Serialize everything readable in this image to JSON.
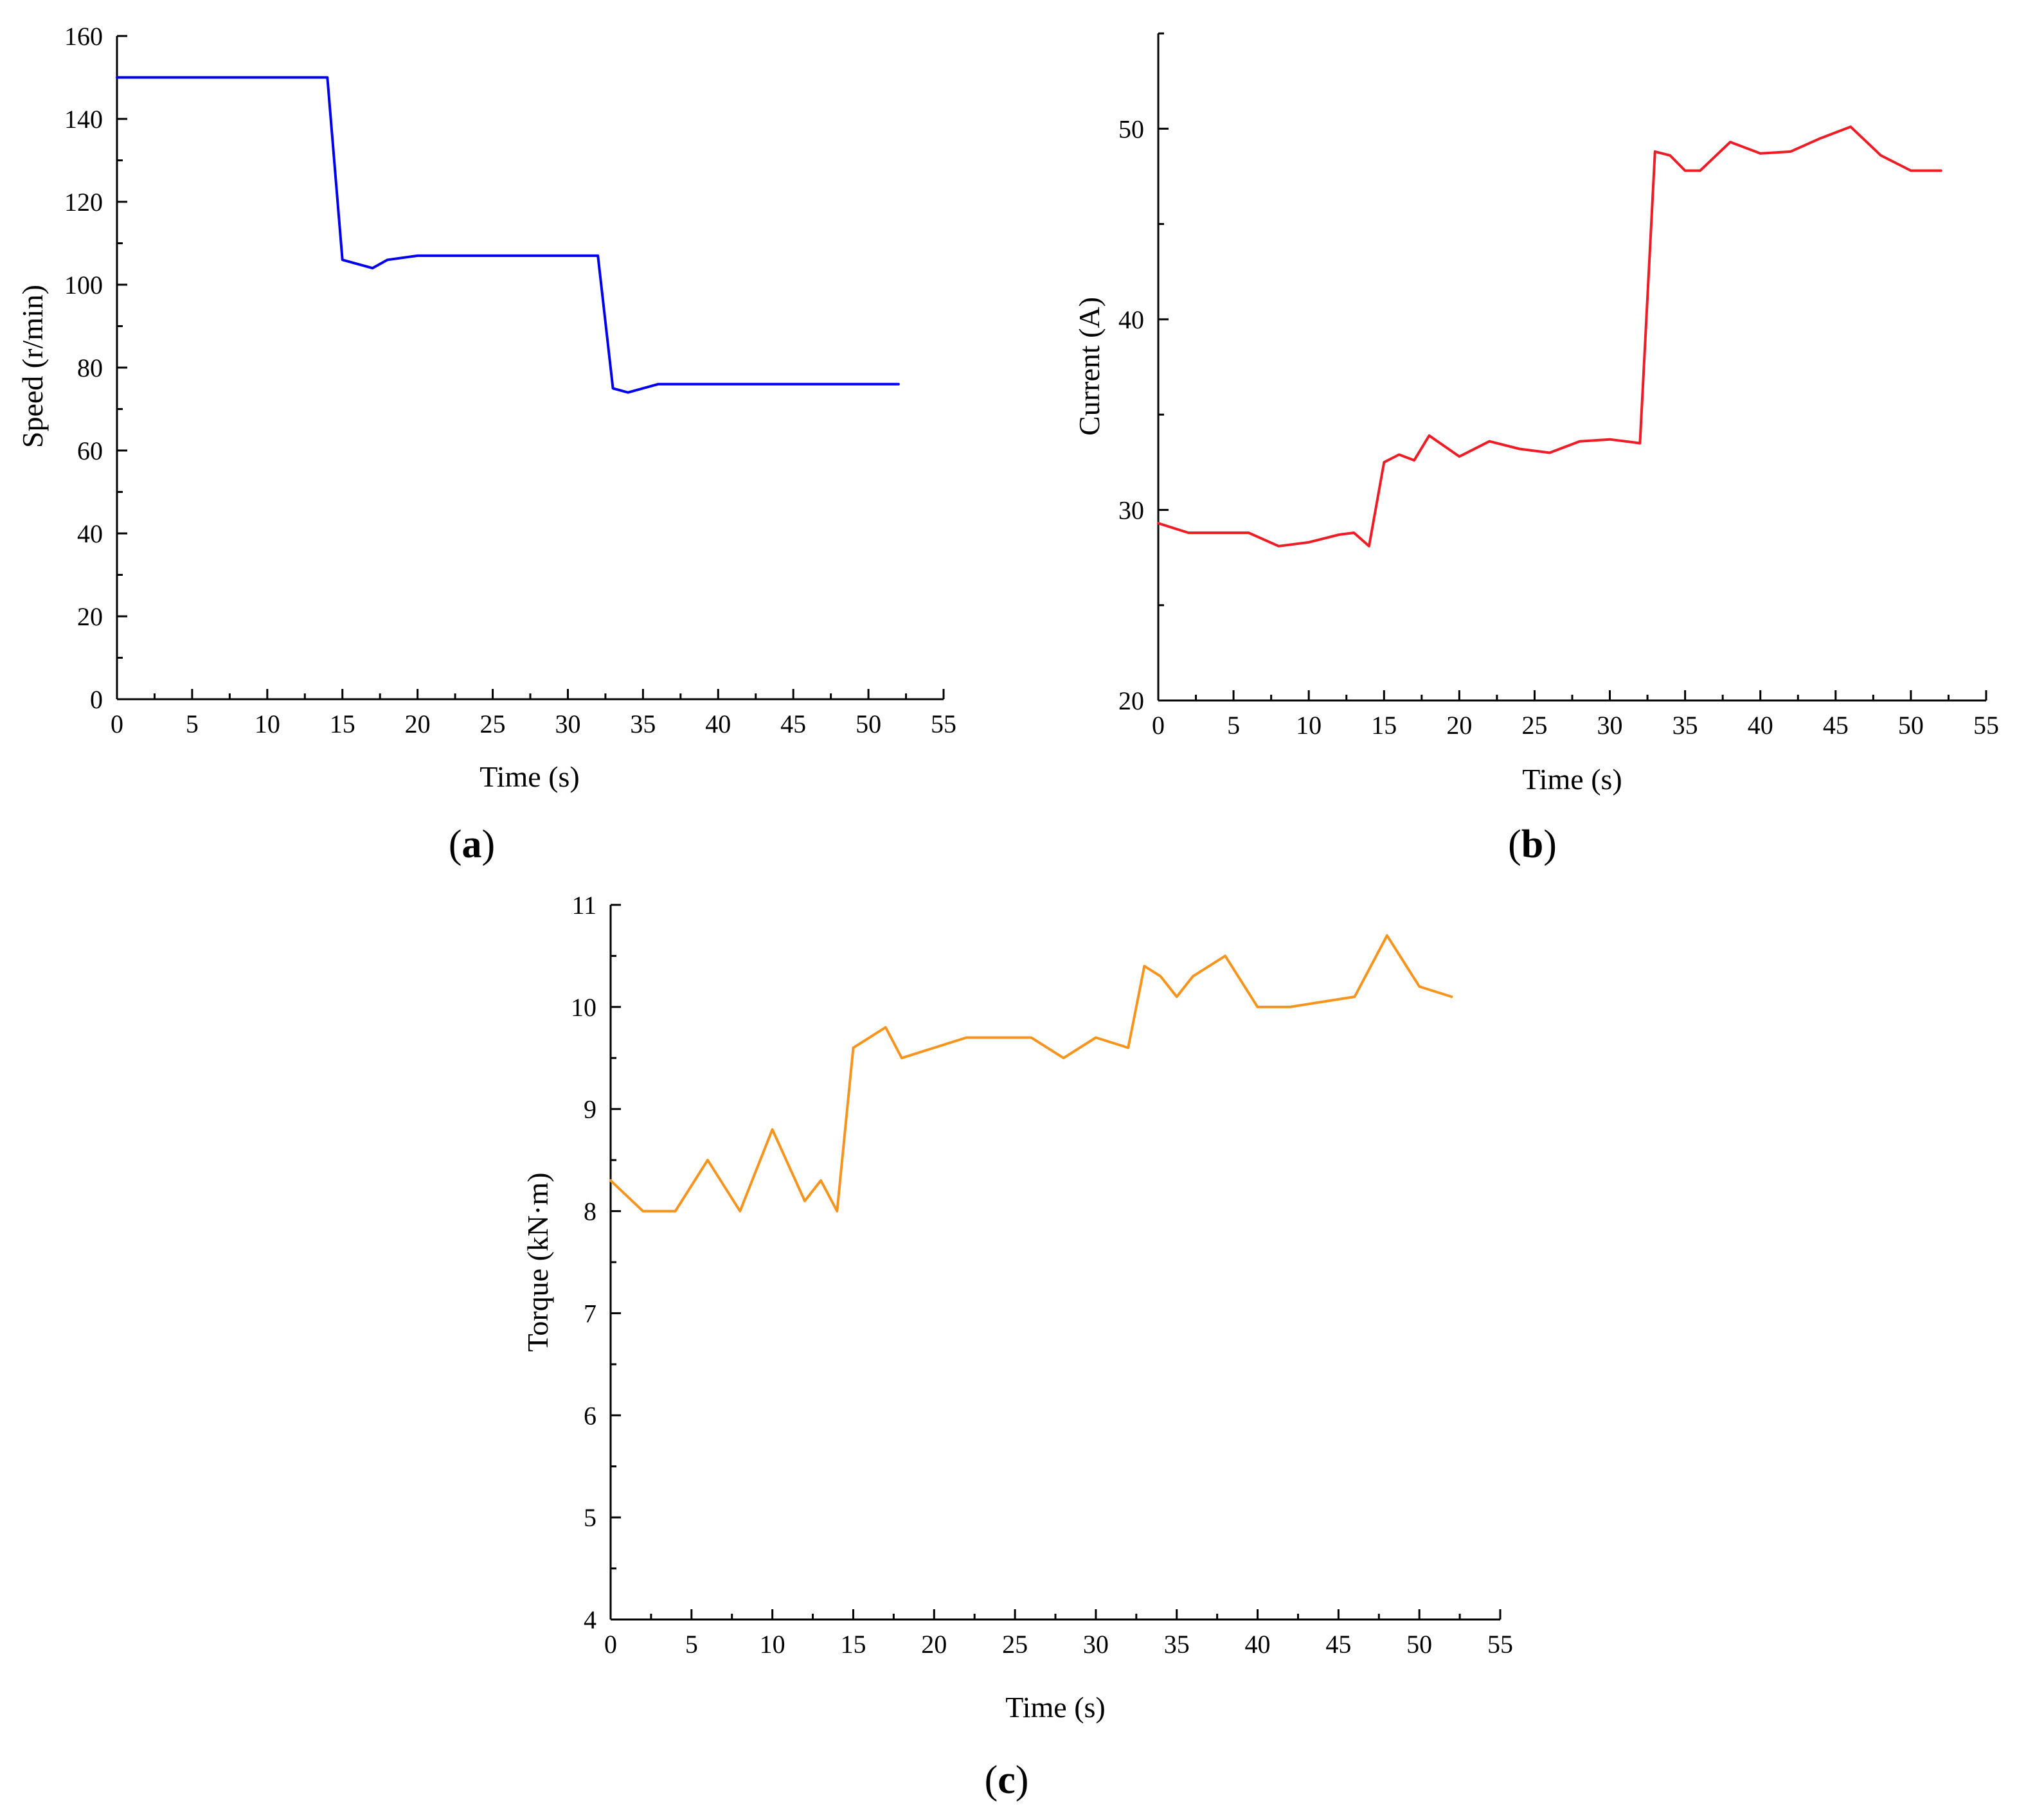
{
  "chart_data": [
    {
      "type": "line",
      "panel_label": "a",
      "xlabel": "Time (s)",
      "ylabel": "Speed (r/min)",
      "xlim": [
        0,
        55
      ],
      "ylim": [
        0,
        160
      ],
      "xticks": [
        0,
        5,
        10,
        15,
        20,
        25,
        30,
        35,
        40,
        45,
        50,
        55
      ],
      "yticks": [
        0,
        20,
        40,
        60,
        80,
        100,
        120,
        140,
        160
      ],
      "grid": false,
      "series": [
        {
          "color": "#0000ee",
          "x": [
            0,
            14,
            15,
            17,
            18,
            20,
            22,
            26,
            30,
            32,
            33,
            34,
            36,
            40,
            44,
            48,
            52
          ],
          "y": [
            150,
            150,
            106,
            104,
            106,
            107,
            107,
            107,
            107,
            107,
            75,
            74,
            76,
            76,
            76,
            76,
            76
          ]
        }
      ]
    },
    {
      "type": "line",
      "panel_label": "b",
      "xlabel": "Time (s)",
      "ylabel": "Current (A)",
      "xlim": [
        0,
        55
      ],
      "ylim": [
        20,
        55
      ],
      "xticks": [
        0,
        5,
        10,
        15,
        20,
        25,
        30,
        35,
        40,
        45,
        50,
        55
      ],
      "yticks": [
        20,
        30,
        40,
        50
      ],
      "grid": false,
      "series": [
        {
          "color": "#ee1c25",
          "x": [
            0,
            2,
            4,
            6,
            8,
            10,
            12,
            13,
            14,
            15,
            16,
            17,
            18,
            20,
            22,
            24,
            26,
            28,
            30,
            32,
            33,
            34,
            35,
            36,
            38,
            40,
            42,
            44,
            46,
            48,
            50,
            52
          ],
          "y": [
            29.3,
            28.8,
            28.8,
            28.8,
            28.1,
            28.3,
            28.7,
            28.8,
            28.1,
            32.5,
            32.9,
            32.6,
            33.9,
            32.8,
            33.6,
            33.2,
            33.0,
            33.6,
            33.7,
            33.5,
            48.8,
            48.6,
            47.8,
            47.8,
            49.3,
            48.7,
            48.8,
            49.5,
            50.1,
            48.6,
            47.8,
            47.8
          ]
        }
      ]
    },
    {
      "type": "line",
      "panel_label": "c",
      "xlabel": "Time (s)",
      "ylabel": "Torque (kN·m)",
      "xlim": [
        0,
        55
      ],
      "ylim": [
        4,
        11
      ],
      "xticks": [
        0,
        5,
        10,
        15,
        20,
        25,
        30,
        35,
        40,
        45,
        50,
        55
      ],
      "yticks": [
        4,
        5,
        6,
        7,
        8,
        9,
        10,
        11
      ],
      "grid": false,
      "series": [
        {
          "color": "#f7941d",
          "x": [
            0,
            2,
            4,
            6,
            8,
            10,
            12,
            13,
            14,
            15,
            17,
            18,
            20,
            22,
            24,
            26,
            28,
            30,
            32,
            33,
            34,
            35,
            36,
            38,
            40,
            42,
            44,
            46,
            48,
            50,
            52
          ],
          "y": [
            8.3,
            8.0,
            8.0,
            8.5,
            8.0,
            8.8,
            8.1,
            8.3,
            8.0,
            9.6,
            9.8,
            9.5,
            9.6,
            9.7,
            9.7,
            9.7,
            9.5,
            9.7,
            9.6,
            10.4,
            10.3,
            10.1,
            10.3,
            10.5,
            10.0,
            10.0,
            10.05,
            10.1,
            10.7,
            10.2,
            10.1
          ]
        }
      ]
    }
  ]
}
